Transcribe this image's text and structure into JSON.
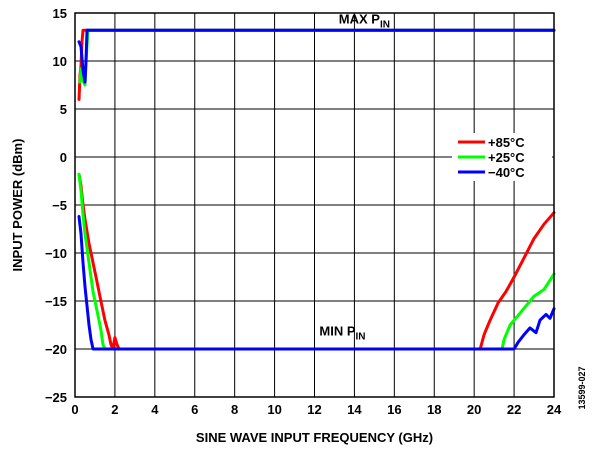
{
  "figure_id": "13599-027",
  "chart_data": {
    "type": "line",
    "xlabel": "SINE WAVE INPUT FREQUENCY (GHz)",
    "ylabel": "INPUT POWER (dBm)",
    "xlim": [
      0,
      24
    ],
    "ylim": [
      -25,
      15
    ],
    "xticks": [
      0,
      2,
      4,
      6,
      8,
      10,
      12,
      14,
      16,
      18,
      20,
      22,
      24
    ],
    "yticks": [
      15,
      10,
      5,
      0,
      -5,
      -10,
      -15,
      -20,
      -25
    ],
    "grid": true,
    "legend_position": "right",
    "annotations": [
      {
        "main": "MAX P",
        "sub": "IN",
        "x": 14.5,
        "y": 13.9
      },
      {
        "main": "MIN P",
        "sub": "IN",
        "x": 13.4,
        "y": -18.6
      }
    ],
    "series": [
      {
        "name": "+85°C",
        "color": "#ff0000",
        "segments": [
          [
            [
              0.2,
              6
            ],
            [
              0.25,
              8.5
            ],
            [
              0.3,
              9.5
            ],
            [
              0.35,
              12
            ],
            [
              0.4,
              13.2
            ],
            [
              0.5,
              13.2
            ],
            [
              24,
              13.2
            ]
          ],
          [
            [
              0.2,
              -1.8
            ],
            [
              0.3,
              -3
            ],
            [
              0.4,
              -5
            ],
            [
              0.5,
              -6.5
            ],
            [
              0.7,
              -9
            ],
            [
              0.9,
              -11
            ],
            [
              1.1,
              -13
            ],
            [
              1.3,
              -15
            ],
            [
              1.5,
              -17
            ],
            [
              1.7,
              -18.5
            ],
            [
              1.8,
              -19.5
            ],
            [
              1.9,
              -20
            ],
            [
              2.0,
              -18.8
            ],
            [
              2.1,
              -19.5
            ],
            [
              2.2,
              -20
            ],
            [
              2.2,
              -20
            ],
            [
              20.3,
              -20
            ],
            [
              20.5,
              -18.5
            ],
            [
              20.8,
              -17
            ],
            [
              21.2,
              -15.2
            ],
            [
              21.6,
              -14
            ],
            [
              22,
              -12.5
            ],
            [
              22.5,
              -10.5
            ],
            [
              23,
              -8.5
            ],
            [
              23.5,
              -7
            ],
            [
              24,
              -5.8
            ]
          ]
        ]
      },
      {
        "name": "+25°C",
        "color": "#00ff00",
        "segments": [
          [
            [
              0.25,
              7.8
            ],
            [
              0.3,
              9.2
            ],
            [
              0.4,
              8
            ],
            [
              0.5,
              7.5
            ],
            [
              0.55,
              10
            ],
            [
              0.65,
              13.2
            ],
            [
              24,
              13.2
            ]
          ],
          [
            [
              0.2,
              -1.8
            ],
            [
              0.3,
              -3.5
            ],
            [
              0.4,
              -6
            ],
            [
              0.5,
              -8
            ],
            [
              0.7,
              -11
            ],
            [
              0.9,
              -14
            ],
            [
              1.1,
              -16
            ],
            [
              1.3,
              -18
            ],
            [
              1.4,
              -19.5
            ],
            [
              1.5,
              -20
            ],
            [
              21.4,
              -20
            ],
            [
              21.5,
              -19
            ],
            [
              21.8,
              -17.5
            ],
            [
              22.2,
              -16.5
            ],
            [
              22.6,
              -15.5
            ],
            [
              23,
              -14.5
            ],
            [
              23.5,
              -13.8
            ],
            [
              24,
              -12.2
            ]
          ]
        ]
      },
      {
        "name": "−40°C",
        "color": "#0000ff",
        "segments": [
          [
            [
              0.2,
              12
            ],
            [
              0.3,
              11.5
            ],
            [
              0.4,
              9
            ],
            [
              0.5,
              7.8
            ],
            [
              0.55,
              10
            ],
            [
              0.6,
              13.2
            ],
            [
              24,
              13.2
            ]
          ],
          [
            [
              0.2,
              -6.2
            ],
            [
              0.3,
              -8
            ],
            [
              0.4,
              -11
            ],
            [
              0.5,
              -13.5
            ],
            [
              0.6,
              -15.5
            ],
            [
              0.7,
              -17.5
            ],
            [
              0.8,
              -19
            ],
            [
              0.9,
              -20
            ],
            [
              22,
              -20
            ],
            [
              22.2,
              -19.3
            ],
            [
              22.5,
              -18.5
            ],
            [
              22.8,
              -17.8
            ],
            [
              23.1,
              -18.3
            ],
            [
              23.3,
              -17
            ],
            [
              23.6,
              -16.4
            ],
            [
              23.8,
              -16.8
            ],
            [
              24,
              -15.8
            ]
          ]
        ]
      }
    ]
  }
}
